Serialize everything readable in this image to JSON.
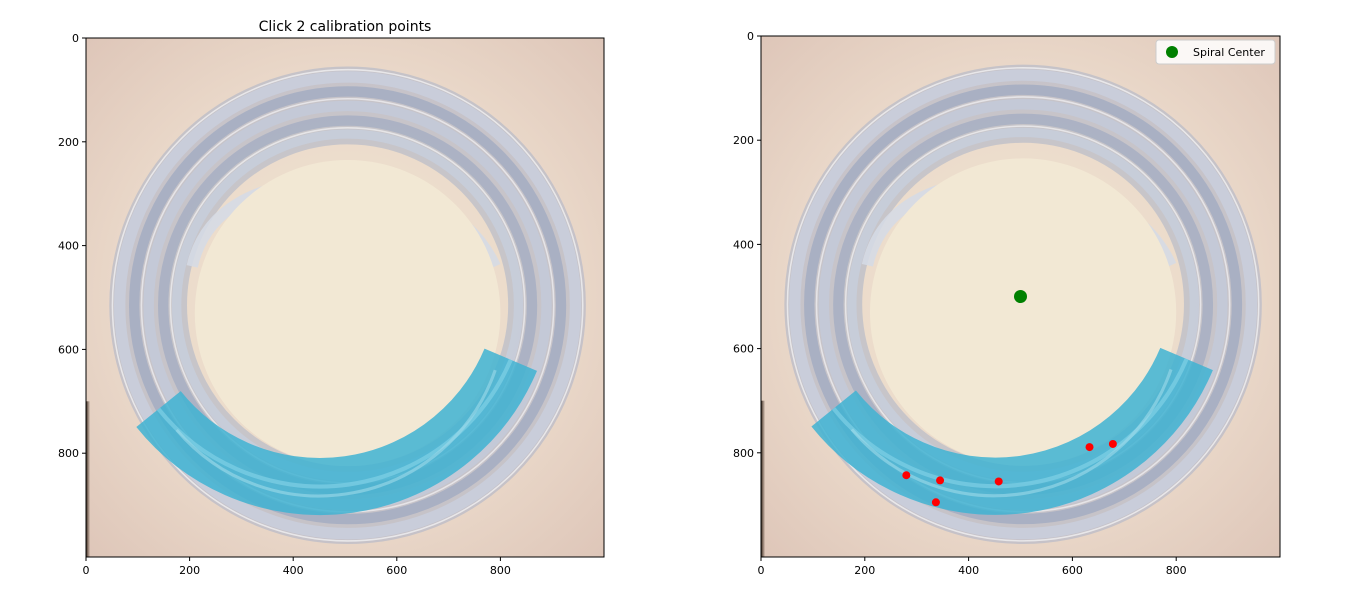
{
  "chart_data": [
    {
      "type": "scatter",
      "title": "Click 2 calibration points",
      "background_image": "photo of coiled clear tubing with blue fluid in the lower arc",
      "xlim": [
        0,
        1000
      ],
      "ylim": [
        1000,
        0
      ],
      "y_inverted": true,
      "x_ticks": [
        0,
        200,
        400,
        600,
        800
      ],
      "y_ticks": [
        0,
        200,
        400,
        600,
        800
      ],
      "grid": false,
      "series": []
    },
    {
      "type": "scatter",
      "title": "",
      "background_image": "photo of coiled clear tubing with blue fluid in the lower arc",
      "xlim": [
        0,
        1000
      ],
      "ylim": [
        1000,
        0
      ],
      "y_inverted": true,
      "x_ticks": [
        0,
        200,
        400,
        600,
        800
      ],
      "y_ticks": [
        0,
        200,
        400,
        600,
        800
      ],
      "grid": false,
      "legend": {
        "position": "top-right",
        "entries": [
          "Spiral Center"
        ]
      },
      "series": [
        {
          "name": "Spiral Center",
          "color": "#008000",
          "marker": "large-circle",
          "points": [
            {
              "x": 500,
              "y": 500
            }
          ]
        },
        {
          "color": "#ff0000",
          "marker": "small-circle",
          "points": [
            {
              "x": 280,
              "y": 843
            },
            {
              "x": 345,
              "y": 853
            },
            {
              "x": 337,
              "y": 895
            },
            {
              "x": 458,
              "y": 855
            },
            {
              "x": 633,
              "y": 789
            },
            {
              "x": 678,
              "y": 783
            }
          ]
        }
      ]
    }
  ],
  "colors": {
    "photo_bg": "#e6d0c2",
    "photo_center": "#f1e6d2",
    "tube_clear": "#b9c2d4",
    "tube_blue": "#45b6d4",
    "axis": "#000000"
  }
}
